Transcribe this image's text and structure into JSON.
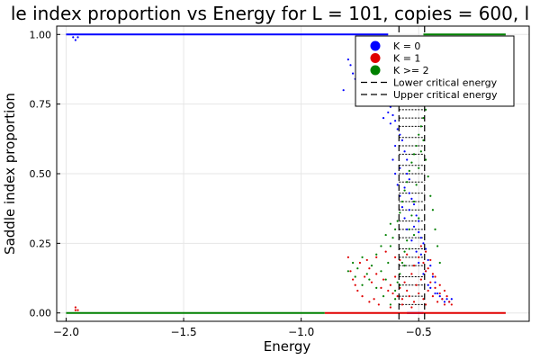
{
  "chart_data": {
    "type": "scatter",
    "title": "le index proportion vs Energy for L = 101, copies = 600, l",
    "xlabel": "Energy",
    "ylabel": "Saddle index proportion",
    "xlim": [
      -2.04,
      -0.03
    ],
    "ylim": [
      -0.03,
      1.03
    ],
    "x_ticks": [
      {
        "value": -2.0,
        "label": "−2.0"
      },
      {
        "value": -1.5,
        "label": "−1.5"
      },
      {
        "value": -1.0,
        "label": "−1.0"
      },
      {
        "value": -0.5,
        "label": "−0.5"
      }
    ],
    "y_ticks": [
      {
        "value": 0.0,
        "label": "0.00"
      },
      {
        "value": 0.25,
        "label": "0.25"
      },
      {
        "value": 0.5,
        "label": "0.50"
      },
      {
        "value": 0.75,
        "label": "0.75"
      },
      {
        "value": 1.0,
        "label": "1.00"
      }
    ],
    "grid": true,
    "legend_position": "top-right",
    "series": [
      {
        "name": "K = 0",
        "color": "#0000ff",
        "points": [
          [
            -1.97,
            0.99
          ],
          [
            -1.96,
            0.98
          ],
          [
            -1.95,
            0.99
          ],
          [
            -0.8,
            0.91
          ],
          [
            -0.79,
            0.89
          ],
          [
            -0.78,
            0.86
          ],
          [
            -0.77,
            0.84
          ],
          [
            -0.76,
            0.82
          ],
          [
            -0.74,
            0.87
          ],
          [
            -0.72,
            0.81
          ],
          [
            -0.7,
            0.79
          ],
          [
            -0.68,
            0.77
          ],
          [
            -0.82,
            0.8
          ],
          [
            -0.62,
            0.74
          ],
          [
            -0.61,
            0.71
          ],
          [
            -0.6,
            0.69
          ],
          [
            -0.59,
            0.66
          ],
          [
            -0.58,
            0.64
          ],
          [
            -0.6,
            0.6
          ],
          [
            -0.57,
            0.62
          ],
          [
            -0.56,
            0.58
          ],
          [
            -0.55,
            0.55
          ],
          [
            -0.58,
            0.52
          ],
          [
            -0.55,
            0.5
          ],
          [
            -0.54,
            0.48
          ],
          [
            -0.56,
            0.45
          ],
          [
            -0.54,
            0.43
          ],
          [
            -0.53,
            0.41
          ],
          [
            -0.52,
            0.39
          ],
          [
            -0.54,
            0.37
          ],
          [
            -0.51,
            0.35
          ],
          [
            -0.5,
            0.33
          ],
          [
            -0.52,
            0.31
          ],
          [
            -0.5,
            0.29
          ],
          [
            -0.49,
            0.27
          ],
          [
            -0.48,
            0.25
          ],
          [
            -0.47,
            0.23
          ],
          [
            -0.49,
            0.21
          ],
          [
            -0.46,
            0.19
          ],
          [
            -0.45,
            0.17
          ],
          [
            -0.47,
            0.15
          ],
          [
            -0.44,
            0.13
          ],
          [
            -0.43,
            0.11
          ],
          [
            -0.45,
            0.09
          ],
          [
            -0.42,
            0.07
          ],
          [
            -0.41,
            0.06
          ],
          [
            -0.4,
            0.05
          ],
          [
            -0.39,
            0.04
          ],
          [
            -0.38,
            0.05
          ],
          [
            -0.37,
            0.04
          ],
          [
            -0.36,
            0.05
          ],
          [
            -0.43,
            0.07
          ],
          [
            -0.46,
            0.1
          ],
          [
            -0.48,
            0.14
          ],
          [
            -0.5,
            0.18
          ],
          [
            -0.51,
            0.22
          ],
          [
            -0.53,
            0.26
          ],
          [
            -0.55,
            0.3
          ],
          [
            -0.56,
            0.34
          ],
          [
            -0.57,
            0.38
          ],
          [
            -0.58,
            0.42
          ],
          [
            -0.59,
            0.46
          ],
          [
            -0.6,
            0.5
          ],
          [
            -0.61,
            0.55
          ],
          [
            -0.62,
            0.68
          ],
          [
            -0.63,
            0.72
          ],
          [
            -0.64,
            0.76
          ],
          [
            -0.65,
            0.7
          ],
          [
            -0.66,
            0.8
          ]
        ]
      },
      {
        "name": "K = 1",
        "color": "#e00000",
        "points": [
          [
            -1.96,
            0.01
          ],
          [
            -1.96,
            0.02
          ],
          [
            -1.95,
            0.01
          ],
          [
            -0.8,
            0.2
          ],
          [
            -0.79,
            0.15
          ],
          [
            -0.77,
            0.1
          ],
          [
            -0.75,
            0.18
          ],
          [
            -0.73,
            0.13
          ],
          [
            -0.71,
            0.16
          ],
          [
            -0.7,
            0.11
          ],
          [
            -0.68,
            0.14
          ],
          [
            -0.66,
            0.09
          ],
          [
            -0.65,
            0.12
          ],
          [
            -0.63,
            0.08
          ],
          [
            -0.62,
            0.1
          ],
          [
            -0.61,
            0.07
          ],
          [
            -0.6,
            0.13
          ],
          [
            -0.59,
            0.06
          ],
          [
            -0.58,
            0.09
          ],
          [
            -0.57,
            0.05
          ],
          [
            -0.56,
            0.11
          ],
          [
            -0.55,
            0.08
          ],
          [
            -0.54,
            0.06
          ],
          [
            -0.53,
            0.14
          ],
          [
            -0.52,
            0.04
          ],
          [
            -0.51,
            0.1
          ],
          [
            -0.5,
            0.07
          ],
          [
            -0.49,
            0.12
          ],
          [
            -0.48,
            0.05
          ],
          [
            -0.47,
            0.15
          ],
          [
            -0.46,
            0.08
          ],
          [
            -0.45,
            0.11
          ],
          [
            -0.44,
            0.06
          ],
          [
            -0.43,
            0.09
          ],
          [
            -0.42,
            0.04
          ],
          [
            -0.41,
            0.07
          ],
          [
            -0.4,
            0.05
          ],
          [
            -0.39,
            0.03
          ],
          [
            -0.38,
            0.06
          ],
          [
            -0.37,
            0.04
          ],
          [
            -0.36,
            0.03
          ],
          [
            -0.5,
            0.2
          ],
          [
            -0.48,
            0.18
          ],
          [
            -0.47,
            0.22
          ],
          [
            -0.46,
            0.16
          ],
          [
            -0.45,
            0.19
          ],
          [
            -0.44,
            0.14
          ],
          [
            -0.49,
            0.24
          ],
          [
            -0.52,
            0.17
          ],
          [
            -0.55,
            0.21
          ],
          [
            -0.58,
            0.19
          ],
          [
            -0.6,
            0.2
          ],
          [
            -0.64,
            0.22
          ],
          [
            -0.68,
            0.2
          ],
          [
            -0.72,
            0.19
          ],
          [
            -0.78,
            0.12
          ],
          [
            -0.76,
            0.08
          ],
          [
            -0.74,
            0.06
          ],
          [
            -0.71,
            0.04
          ],
          [
            -0.69,
            0.05
          ],
          [
            -0.67,
            0.03
          ],
          [
            -0.43,
            0.13
          ],
          [
            -0.41,
            0.1
          ],
          [
            -0.39,
            0.08
          ],
          [
            -0.47,
            0.03
          ],
          [
            -0.53,
            0.02
          ],
          [
            -0.57,
            0.03
          ],
          [
            -0.62,
            0.02
          ]
        ]
      },
      {
        "name": "K >= 2",
        "color": "#008000",
        "points": [
          [
            -0.78,
            0.18
          ],
          [
            -0.76,
            0.16
          ],
          [
            -0.74,
            0.2
          ],
          [
            -0.72,
            0.14
          ],
          [
            -0.7,
            0.17
          ],
          [
            -0.68,
            0.21
          ],
          [
            -0.66,
            0.15
          ],
          [
            -0.64,
            0.12
          ],
          [
            -0.63,
            0.18
          ],
          [
            -0.62,
            0.24
          ],
          [
            -0.61,
            0.27
          ],
          [
            -0.6,
            0.3
          ],
          [
            -0.59,
            0.33
          ],
          [
            -0.58,
            0.36
          ],
          [
            -0.57,
            0.4
          ],
          [
            -0.56,
            0.44
          ],
          [
            -0.55,
            0.47
          ],
          [
            -0.54,
            0.51
          ],
          [
            -0.53,
            0.54
          ],
          [
            -0.52,
            0.57
          ],
          [
            -0.51,
            0.6
          ],
          [
            -0.5,
            0.64
          ],
          [
            -0.49,
            0.67
          ],
          [
            -0.48,
            0.7
          ],
          [
            -0.47,
            0.73
          ],
          [
            -0.46,
            0.76
          ],
          [
            -0.45,
            0.8
          ],
          [
            -0.44,
            0.83
          ],
          [
            -0.43,
            0.86
          ],
          [
            -0.42,
            0.9
          ],
          [
            -0.41,
            0.93
          ],
          [
            -0.4,
            0.96
          ],
          [
            -0.38,
            0.98
          ],
          [
            -0.36,
            0.99
          ],
          [
            -0.49,
            0.58
          ],
          [
            -0.5,
            0.52
          ],
          [
            -0.51,
            0.46
          ],
          [
            -0.52,
            0.4
          ],
          [
            -0.53,
            0.35
          ],
          [
            -0.54,
            0.3
          ],
          [
            -0.55,
            0.26
          ],
          [
            -0.56,
            0.22
          ],
          [
            -0.57,
            0.18
          ],
          [
            -0.58,
            0.14
          ],
          [
            -0.59,
            0.11
          ],
          [
            -0.6,
            0.08
          ],
          [
            -0.48,
            0.62
          ],
          [
            -0.47,
            0.55
          ],
          [
            -0.46,
            0.49
          ],
          [
            -0.45,
            0.42
          ],
          [
            -0.44,
            0.37
          ],
          [
            -0.43,
            0.3
          ],
          [
            -0.42,
            0.24
          ],
          [
            -0.41,
            0.18
          ],
          [
            -0.5,
            0.34
          ],
          [
            -0.52,
            0.28
          ],
          [
            -0.54,
            0.23
          ],
          [
            -0.56,
            0.17
          ],
          [
            -0.58,
            0.1
          ],
          [
            -0.6,
            0.05
          ],
          [
            -0.62,
            0.03
          ],
          [
            -0.65,
            0.06
          ],
          [
            -0.68,
            0.09
          ],
          [
            -0.71,
            0.12
          ],
          [
            -0.74,
            0.1
          ],
          [
            -0.77,
            0.13
          ],
          [
            -0.8,
            0.15
          ],
          [
            -0.66,
            0.24
          ],
          [
            -0.64,
            0.28
          ],
          [
            -0.62,
            0.32
          ]
        ]
      }
    ],
    "horizontal_bands": [
      {
        "series": "K = 0",
        "y": 1.0,
        "x_from": -2.0,
        "x_to": -0.63
      },
      {
        "series": "K = 0",
        "y": 0.0,
        "x_from": -0.55,
        "x_to": -0.48
      },
      {
        "series": "K = 1",
        "y": 0.0,
        "x_from": -0.9,
        "x_to": -0.13
      },
      {
        "series": "K >= 2",
        "y": 0.0,
        "x_from": -2.0,
        "x_to": -0.9
      },
      {
        "series": "K >= 2",
        "y": 1.0,
        "x_from": -0.48,
        "x_to": -0.13
      }
    ],
    "reference_lines": [
      {
        "name": "Lower critical energy",
        "x": -0.584,
        "style": "dashed",
        "color": "#000000"
      },
      {
        "name": "Upper critical energy",
        "x": -0.475,
        "style": "dashed",
        "color": "#000000"
      }
    ],
    "level_lines_between_critical": [
      0.03,
      0.06,
      0.1,
      0.13,
      0.17,
      0.2,
      0.23,
      0.27,
      0.3,
      0.33,
      0.37,
      0.4,
      0.43,
      0.47,
      0.5,
      0.53,
      0.57,
      0.6,
      0.63,
      0.67,
      0.7,
      0.73,
      0.77,
      0.8,
      0.83,
      0.87,
      0.9,
      0.93,
      0.97
    ]
  }
}
